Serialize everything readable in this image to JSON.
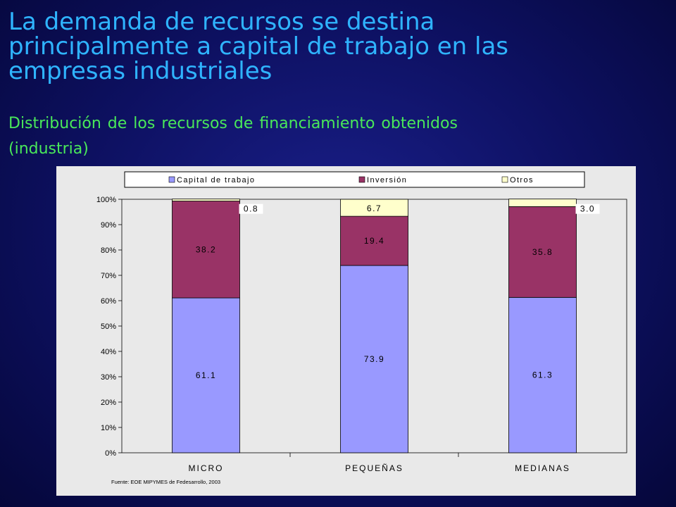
{
  "title_lines": [
    "La demanda de recursos se destina",
    "principalmente a capital de trabajo en las",
    "empresas industriales"
  ],
  "subtitle_lines": [
    "Distribución de los recursos de financiamiento obtenidos",
    "(industria)"
  ],
  "source_note": "Fuente: EOE MIPYMES de Fedesarrollo, 2003",
  "colors": {
    "title": "#2fb4ff",
    "subtitle": "#49e85a"
  },
  "chart_data": {
    "type": "bar",
    "stacked": true,
    "categories": [
      "MICRO",
      "PEQUEÑAS",
      "MEDIANAS"
    ],
    "series": [
      {
        "name": "Capital de trabajo",
        "values": [
          61.1,
          73.9,
          61.3
        ],
        "labels": [
          "61.1",
          "73.9",
          "61.3"
        ],
        "color": "#9999ff"
      },
      {
        "name": "Inversión",
        "values": [
          38.2,
          19.4,
          35.8
        ],
        "labels": [
          "38.2",
          "19.4",
          "35.8"
        ],
        "color": "#993366"
      },
      {
        "name": "Otros",
        "values": [
          0.8,
          6.7,
          3.0
        ],
        "labels": [
          "0.8",
          "6.7",
          "3.0"
        ],
        "color": "#ffffcc"
      }
    ],
    "yticks": [
      "0%",
      "10%",
      "20%",
      "30%",
      "40%",
      "50%",
      "60%",
      "70%",
      "80%",
      "90%",
      "100%"
    ],
    "ylim": [
      0,
      100
    ],
    "legend_position": "top",
    "grid": false
  }
}
